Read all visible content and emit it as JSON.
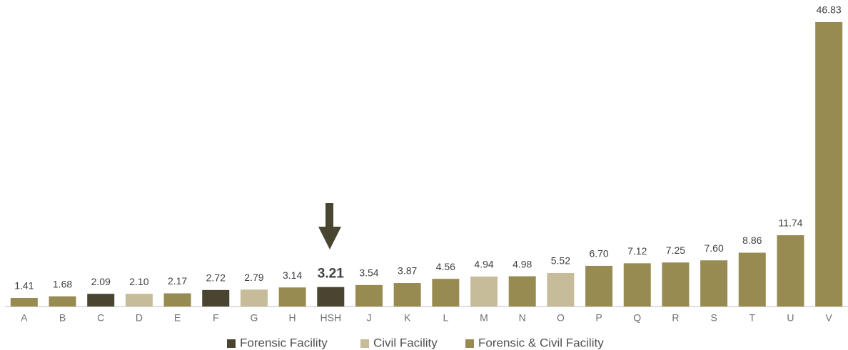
{
  "chart_data": {
    "type": "bar",
    "categories": [
      "A",
      "B",
      "C",
      "D",
      "E",
      "F",
      "G",
      "H",
      "HSH",
      "J",
      "K",
      "L",
      "M",
      "N",
      "O",
      "P",
      "Q",
      "R",
      "S",
      "T",
      "U",
      "V"
    ],
    "series": [
      {
        "name": "Forensic Facility",
        "color": "#4a4530",
        "values": [
          null,
          null,
          2.09,
          null,
          null,
          2.72,
          null,
          null,
          3.21,
          null,
          null,
          null,
          null,
          null,
          null,
          null,
          null,
          null,
          null,
          null,
          null,
          null
        ]
      },
      {
        "name": "Civil Facility",
        "color": "#c6bc99",
        "values": [
          null,
          null,
          null,
          2.1,
          null,
          null,
          2.79,
          null,
          null,
          null,
          null,
          null,
          4.94,
          null,
          5.52,
          null,
          null,
          null,
          null,
          null,
          null,
          null
        ],
        "value_labels": [
          null,
          null,
          null,
          "2.10",
          null,
          null,
          "2.79",
          null,
          null,
          null,
          null,
          null,
          "4.94",
          null,
          "5.52",
          null,
          null,
          null,
          null,
          null,
          null,
          null
        ]
      },
      {
        "name": "Forensic & Civil Facility",
        "color": "#978b52",
        "values": [
          1.41,
          1.68,
          null,
          null,
          2.17,
          null,
          null,
          3.14,
          null,
          3.54,
          3.87,
          4.56,
          null,
          4.98,
          null,
          6.7,
          7.12,
          7.25,
          7.6,
          8.86,
          11.74,
          46.83
        ],
        "value_labels": [
          "1.41",
          "1.68",
          null,
          null,
          "2.17",
          null,
          null,
          "3.14",
          null,
          "3.54",
          "3.87",
          "4.56",
          null,
          "4.98",
          null,
          "6.70",
          "7.12",
          "7.25",
          "7.60",
          "8.86",
          "11.74",
          "46.83"
        ]
      }
    ]
  }
}
